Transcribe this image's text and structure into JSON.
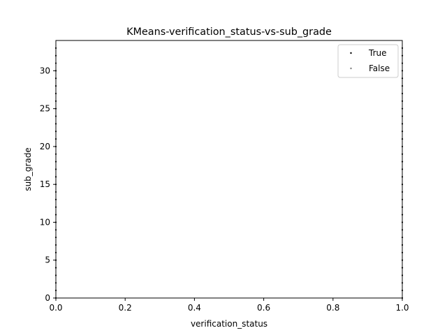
{
  "chart_data": {
    "type": "scatter",
    "title": "KMeans-verification_status-vs-sub_grade",
    "xlabel": "verification_status",
    "ylabel": "sub_grade",
    "xlim": [
      0,
      1
    ],
    "ylim": [
      0,
      34
    ],
    "xticks": [
      0.0,
      0.2,
      0.4,
      0.6,
      0.8,
      1.0
    ],
    "xtick_labels": [
      "0.0",
      "0.2",
      "0.4",
      "0.6",
      "0.8",
      "1.0"
    ],
    "yticks": [
      0,
      5,
      10,
      15,
      20,
      25,
      30
    ],
    "ytick_labels": [
      "0",
      "5",
      "10",
      "15",
      "20",
      "25",
      "30"
    ],
    "grid": false,
    "legend_position": "top-right",
    "series": [
      {
        "name": "True",
        "color": "#000000",
        "points": [
          {
            "x": 0,
            "y": 0
          },
          {
            "x": 0,
            "y": 1
          },
          {
            "x": 0,
            "y": 2
          },
          {
            "x": 0,
            "y": 3
          },
          {
            "x": 0,
            "y": 4
          },
          {
            "x": 0,
            "y": 5
          },
          {
            "x": 0,
            "y": 6
          },
          {
            "x": 0,
            "y": 7
          },
          {
            "x": 0,
            "y": 8
          },
          {
            "x": 0,
            "y": 9
          },
          {
            "x": 0,
            "y": 10
          },
          {
            "x": 0,
            "y": 11
          },
          {
            "x": 0,
            "y": 12
          },
          {
            "x": 0,
            "y": 13
          },
          {
            "x": 0,
            "y": 14
          },
          {
            "x": 0,
            "y": 15
          },
          {
            "x": 0,
            "y": 16
          },
          {
            "x": 0,
            "y": 17
          },
          {
            "x": 0,
            "y": 18
          },
          {
            "x": 0,
            "y": 19
          },
          {
            "x": 0,
            "y": 20
          },
          {
            "x": 0,
            "y": 21
          },
          {
            "x": 0,
            "y": 22
          },
          {
            "x": 0,
            "y": 23
          },
          {
            "x": 0,
            "y": 24
          },
          {
            "x": 0,
            "y": 25
          },
          {
            "x": 0,
            "y": 26
          },
          {
            "x": 0,
            "y": 27
          },
          {
            "x": 0,
            "y": 28
          },
          {
            "x": 0,
            "y": 29
          },
          {
            "x": 0,
            "y": 30
          },
          {
            "x": 0,
            "y": 31
          },
          {
            "x": 0,
            "y": 32
          },
          {
            "x": 0,
            "y": 33
          },
          {
            "x": 1,
            "y": 0
          },
          {
            "x": 1,
            "y": 1
          },
          {
            "x": 1,
            "y": 2
          },
          {
            "x": 1,
            "y": 3
          },
          {
            "x": 1,
            "y": 4
          },
          {
            "x": 1,
            "y": 5
          },
          {
            "x": 1,
            "y": 6
          },
          {
            "x": 1,
            "y": 7
          },
          {
            "x": 1,
            "y": 8
          },
          {
            "x": 1,
            "y": 9
          },
          {
            "x": 1,
            "y": 10
          },
          {
            "x": 1,
            "y": 11
          },
          {
            "x": 1,
            "y": 12
          },
          {
            "x": 1,
            "y": 13
          },
          {
            "x": 1,
            "y": 14
          },
          {
            "x": 1,
            "y": 15
          },
          {
            "x": 1,
            "y": 16
          },
          {
            "x": 1,
            "y": 17
          },
          {
            "x": 1,
            "y": 18
          },
          {
            "x": 1,
            "y": 19
          },
          {
            "x": 1,
            "y": 20
          },
          {
            "x": 1,
            "y": 21
          },
          {
            "x": 1,
            "y": 22
          },
          {
            "x": 1,
            "y": 23
          },
          {
            "x": 1,
            "y": 24
          },
          {
            "x": 1,
            "y": 25
          },
          {
            "x": 1,
            "y": 26
          },
          {
            "x": 1,
            "y": 27
          },
          {
            "x": 1,
            "y": 28
          },
          {
            "x": 1,
            "y": 29
          },
          {
            "x": 1,
            "y": 30
          },
          {
            "x": 1,
            "y": 31
          },
          {
            "x": 1,
            "y": 32
          },
          {
            "x": 1,
            "y": 33
          }
        ]
      },
      {
        "name": "False",
        "color": "#808080",
        "points": []
      }
    ]
  }
}
